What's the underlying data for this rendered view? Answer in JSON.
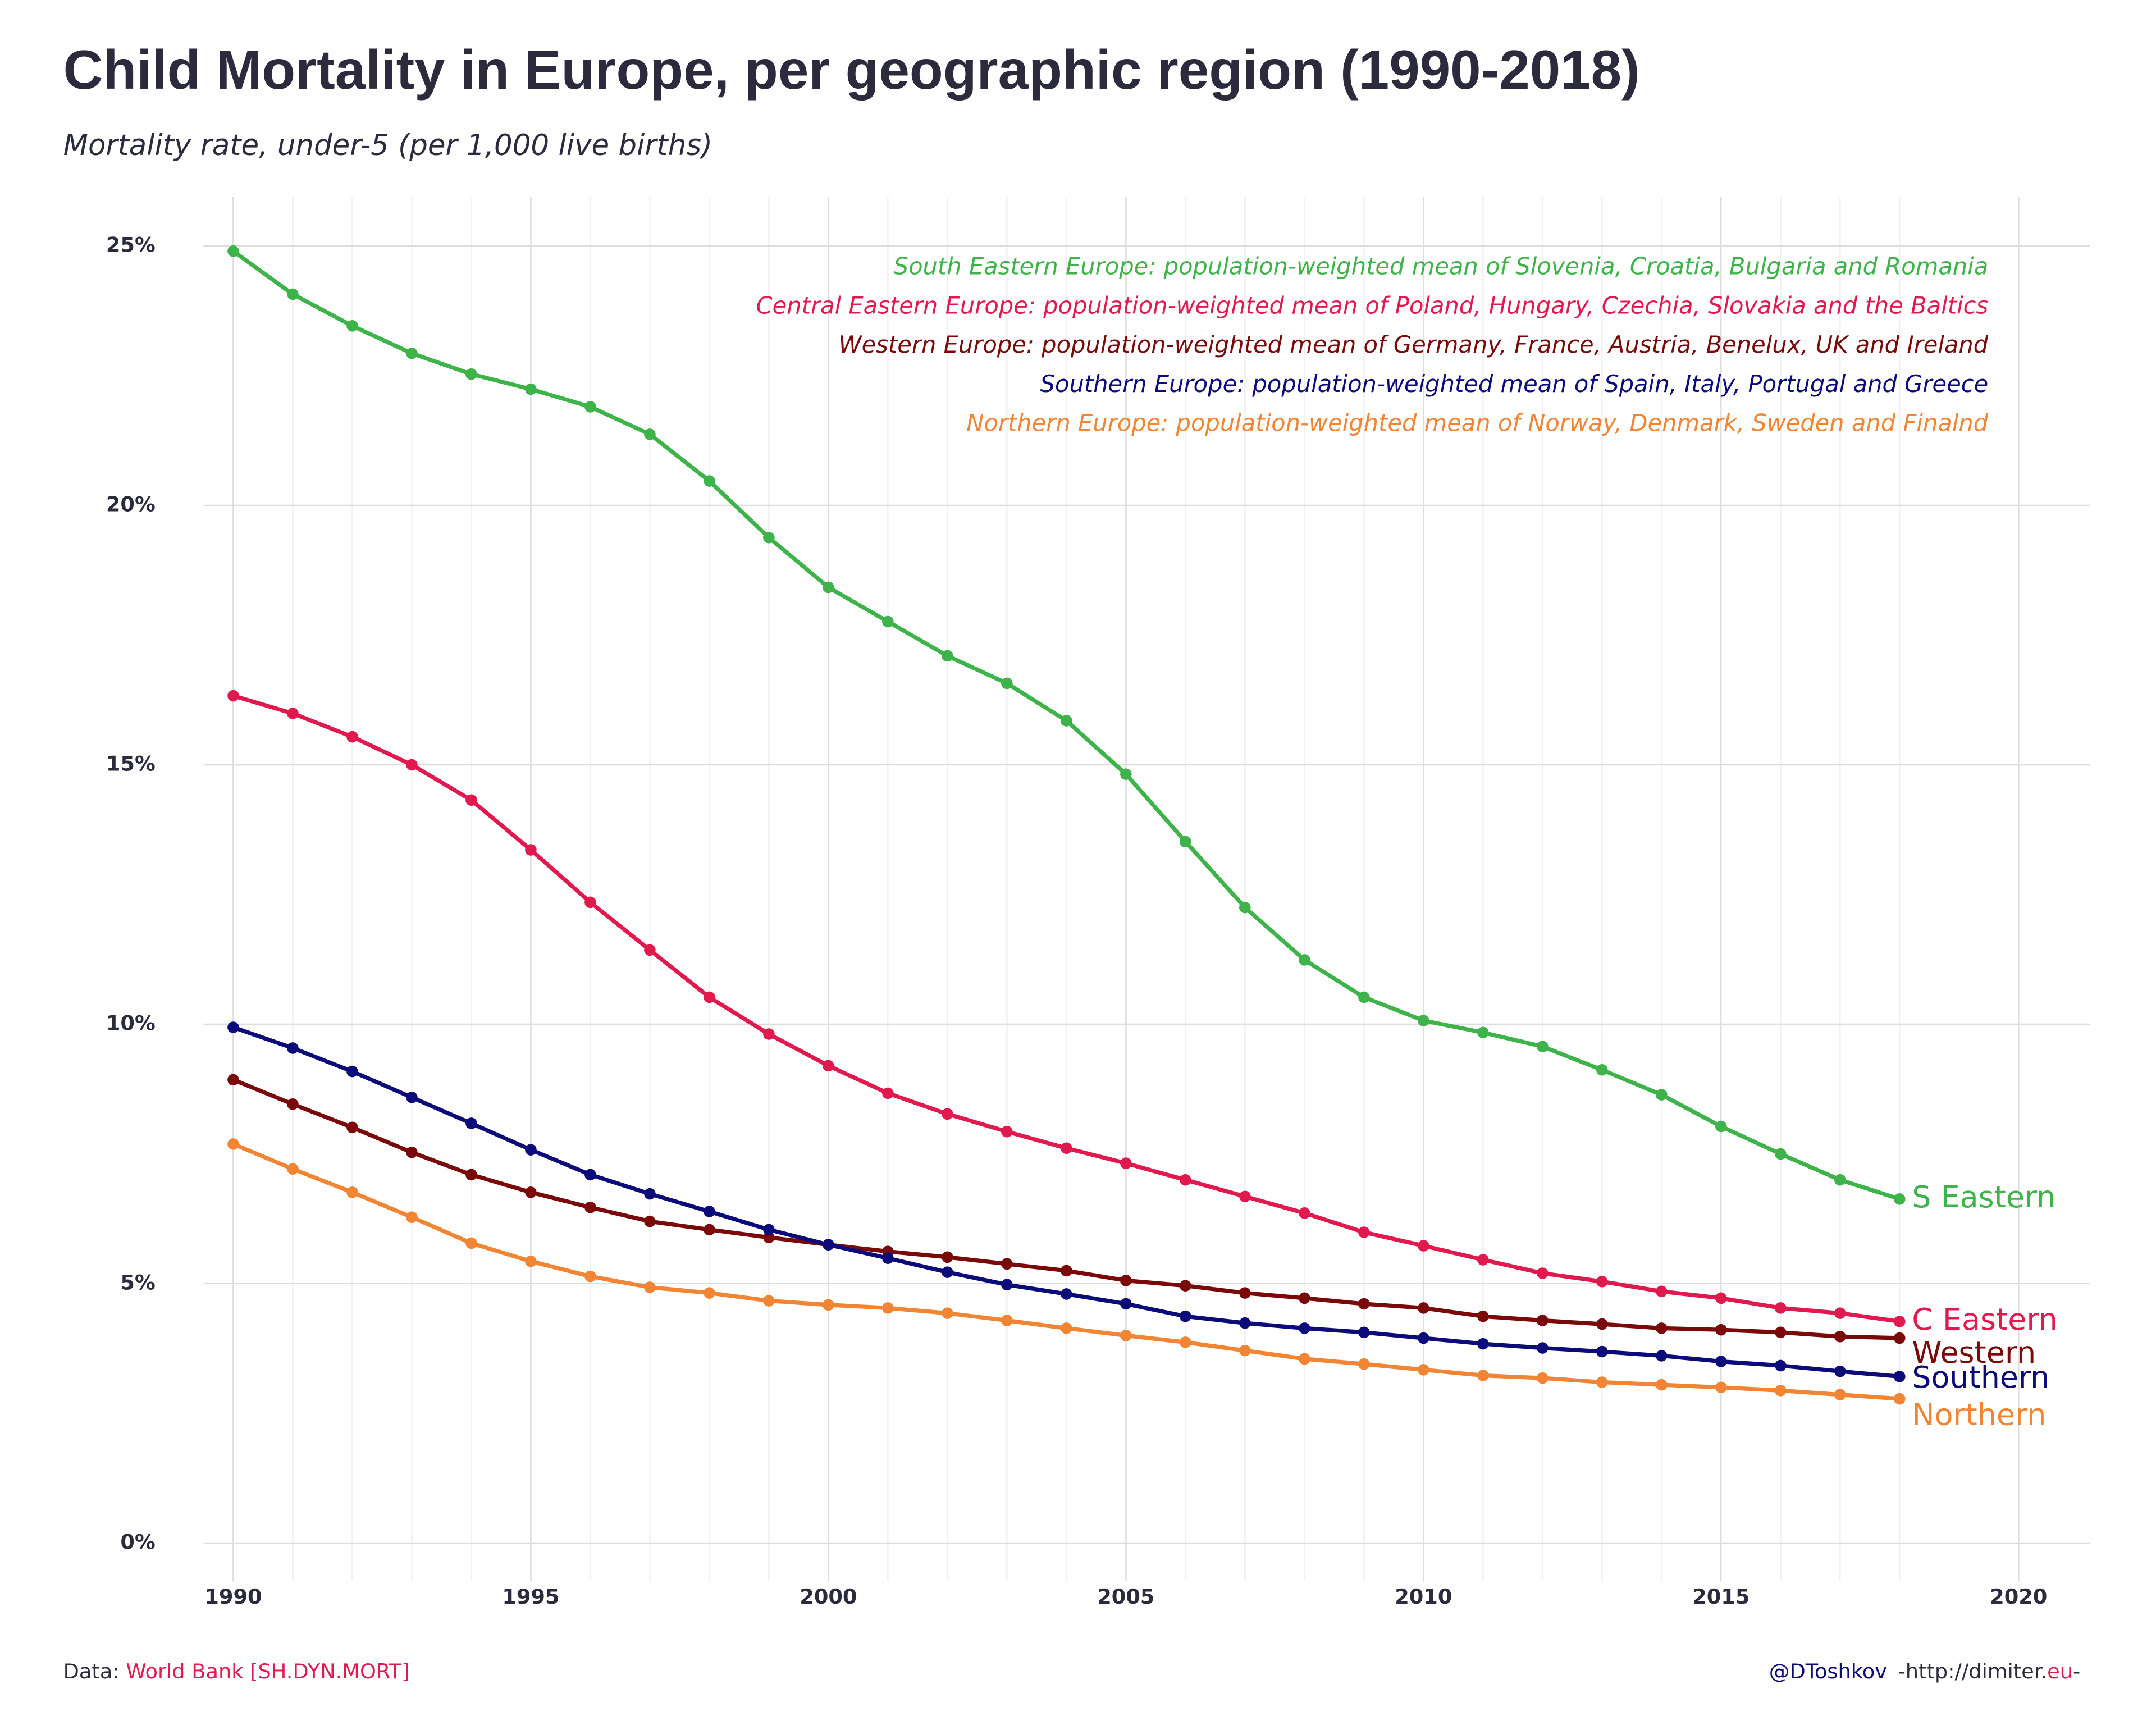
{
  "chart_data": {
    "type": "line",
    "title": "Child Mortality in Europe, per geographic region (1990-2018)",
    "subtitle": "Mortality rate, under-5 (per 1,000 live births)",
    "x": [
      1990,
      1991,
      1992,
      1993,
      1994,
      1995,
      1996,
      1997,
      1998,
      1999,
      2000,
      2001,
      2002,
      2003,
      2004,
      2005,
      2006,
      2007,
      2008,
      2009,
      2010,
      2011,
      2012,
      2013,
      2014,
      2015,
      2016,
      2017,
      2018
    ],
    "xlim": [
      1989.5,
      2021.2
    ],
    "xticks": [
      1990,
      1995,
      2000,
      2005,
      2010,
      2015,
      2020
    ],
    "ylim": [
      -0.74,
      25.95
    ],
    "yticks": [
      {
        "value": 0,
        "label": "0%"
      },
      {
        "value": 5,
        "label": "5%"
      },
      {
        "value": 10,
        "label": "10%"
      },
      {
        "value": 15,
        "label": "15%"
      },
      {
        "value": 20,
        "label": "20%"
      },
      {
        "value": 25,
        "label": "25%"
      }
    ],
    "grid": true,
    "series": [
      {
        "name": "South Eastern Europe: population-weighted mean of Slovenia, Croatia, Bulgaria and Romania",
        "label": "S Eastern",
        "color": "#3db34a",
        "values": [
          24.9,
          24.07,
          23.46,
          22.93,
          22.53,
          22.24,
          21.9,
          21.37,
          20.47,
          19.38,
          18.42,
          17.76,
          17.1,
          16.57,
          15.85,
          14.82,
          13.52,
          12.25,
          11.24,
          10.52,
          10.07,
          9.84,
          9.57,
          9.12,
          8.64,
          8.03,
          7.5,
          7.0,
          6.63
        ]
      },
      {
        "name": "Central Eastern Europe: population-weighted mean of Poland, Hungary, Czechia, Slovakia and the Baltics",
        "label": "C Eastern",
        "color": "#e0194f",
        "values": [
          16.33,
          15.99,
          15.54,
          15.0,
          14.32,
          13.36,
          12.35,
          11.43,
          10.52,
          9.81,
          9.2,
          8.67,
          8.27,
          7.93,
          7.61,
          7.32,
          7.0,
          6.68,
          6.36,
          5.99,
          5.73,
          5.46,
          5.2,
          5.04,
          4.85,
          4.72,
          4.53,
          4.43,
          4.27
        ]
      },
      {
        "name": "Western Europe: population-weighted mean of Germany, France, Austria, Benelux, UK and Ireland",
        "label": "Western",
        "color": "#7a0a0a",
        "values": [
          8.93,
          8.46,
          8.01,
          7.53,
          7.1,
          6.76,
          6.47,
          6.2,
          6.04,
          5.89,
          5.75,
          5.62,
          5.51,
          5.38,
          5.25,
          5.06,
          4.96,
          4.82,
          4.72,
          4.61,
          4.53,
          4.37,
          4.29,
          4.22,
          4.14,
          4.11,
          4.06,
          3.98,
          3.95
        ]
      },
      {
        "name": "Southern Europe: population-weighted mean of Spain, Italy, Portugal and Greece",
        "label": "Southern",
        "color": "#0b0b7a",
        "values": [
          9.94,
          9.54,
          9.09,
          8.59,
          8.09,
          7.58,
          7.1,
          6.73,
          6.39,
          6.04,
          5.75,
          5.49,
          5.22,
          4.98,
          4.8,
          4.61,
          4.37,
          4.24,
          4.14,
          4.06,
          3.95,
          3.84,
          3.76,
          3.69,
          3.61,
          3.5,
          3.42,
          3.31,
          3.21
        ]
      },
      {
        "name": "Northern Europe: population-weighted mean of Norway, Denmark, Sweden and Finalnd",
        "label": "Northern",
        "color": "#f28534",
        "values": [
          7.69,
          7.21,
          6.76,
          6.28,
          5.78,
          5.43,
          5.14,
          4.93,
          4.82,
          4.67,
          4.59,
          4.53,
          4.43,
          4.29,
          4.14,
          4.0,
          3.87,
          3.71,
          3.55,
          3.45,
          3.34,
          3.23,
          3.18,
          3.1,
          3.05,
          3.0,
          2.94,
          2.86,
          2.78
        ]
      }
    ],
    "source": {
      "prefix": "Data: ",
      "text": "World Bank [SH.DYN.MORT]",
      "color": "#e0194f"
    },
    "credit": {
      "handle": "@DToshkov",
      "handle_color": "#0b0b7a",
      "site": "-http://dimiter.",
      "tld": "eu",
      "tld_color": "#e0194f",
      "end": "-"
    }
  }
}
